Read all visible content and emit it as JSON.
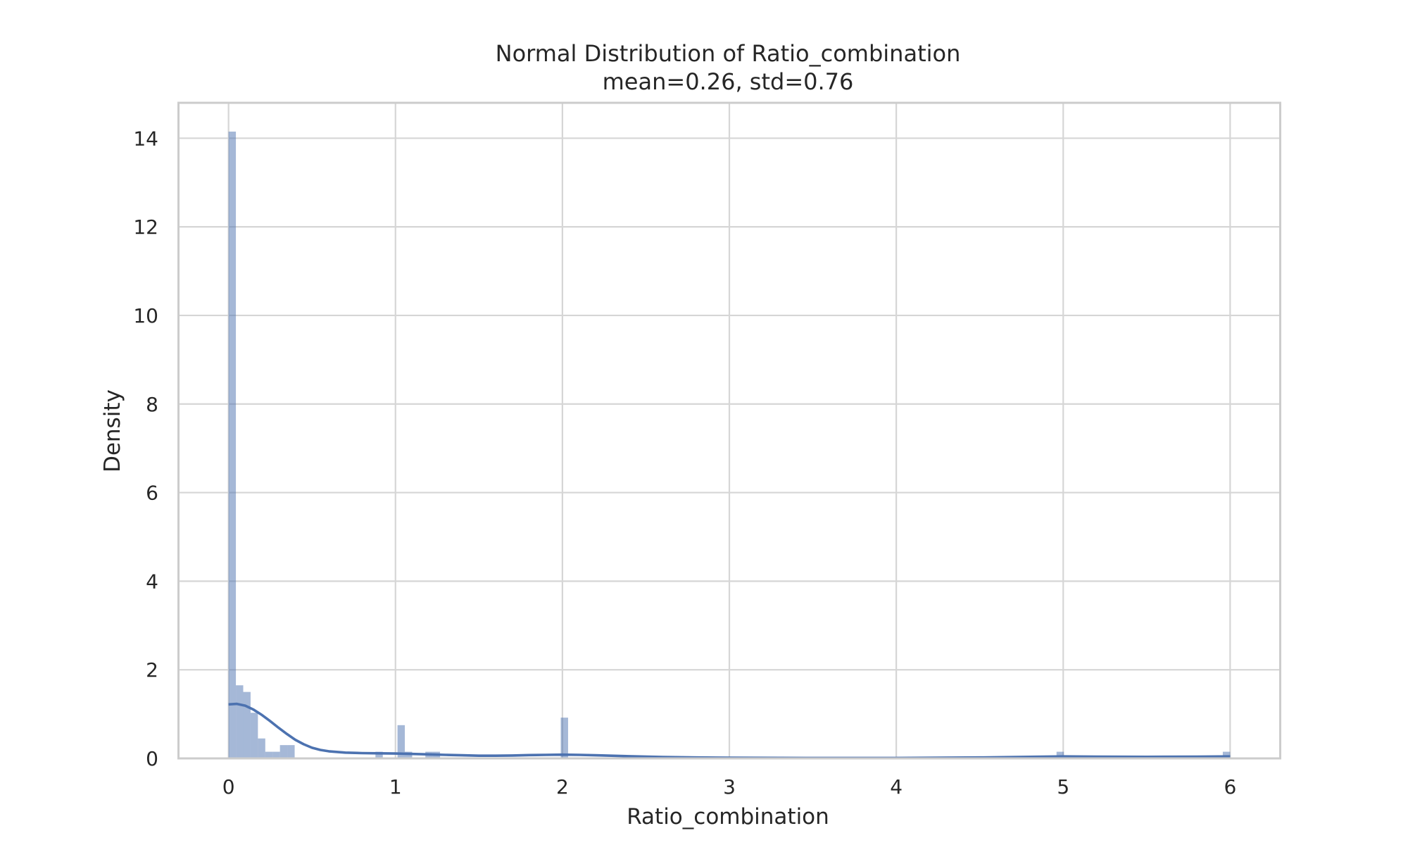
{
  "chart_data": {
    "type": "histogram",
    "title": "Normal Distribution of Ratio_combination",
    "subtitle": "mean=0.26, std=0.76",
    "xlabel": "Ratio_combination",
    "ylabel": "Density",
    "xlim": [
      -0.3,
      6.3
    ],
    "ylim": [
      0,
      14.8
    ],
    "x_ticks": [
      0,
      1,
      2,
      3,
      4,
      5,
      6
    ],
    "y_ticks": [
      0,
      2,
      4,
      6,
      8,
      10,
      12,
      14
    ],
    "grid": true,
    "bin_width": 0.044,
    "bins": [
      {
        "x": 0.0,
        "density": 14.15
      },
      {
        "x": 0.044,
        "density": 1.65
      },
      {
        "x": 0.088,
        "density": 1.5
      },
      {
        "x": 0.132,
        "density": 1.03
      },
      {
        "x": 0.176,
        "density": 0.45
      },
      {
        "x": 0.22,
        "density": 0.15
      },
      {
        "x": 0.264,
        "density": 0.15
      },
      {
        "x": 0.308,
        "density": 0.3
      },
      {
        "x": 0.352,
        "density": 0.3
      },
      {
        "x": 0.88,
        "density": 0.15
      },
      {
        "x": 1.012,
        "density": 0.75
      },
      {
        "x": 1.056,
        "density": 0.15
      },
      {
        "x": 1.179,
        "density": 0.15
      },
      {
        "x": 1.223,
        "density": 0.15
      },
      {
        "x": 1.99,
        "density": 0.92
      },
      {
        "x": 4.96,
        "density": 0.15
      },
      {
        "x": 5.956,
        "density": 0.15
      }
    ],
    "kde": {
      "x": [
        0.0,
        0.05,
        0.1,
        0.15,
        0.2,
        0.25,
        0.3,
        0.35,
        0.4,
        0.45,
        0.5,
        0.55,
        0.6,
        0.7,
        0.8,
        0.9,
        1.0,
        1.1,
        1.2,
        1.3,
        1.4,
        1.5,
        1.6,
        1.7,
        1.8,
        1.9,
        2.0,
        2.1,
        2.2,
        2.4,
        2.6,
        2.8,
        3.0,
        3.5,
        4.0,
        4.5,
        4.8,
        5.0,
        5.2,
        5.5,
        5.8,
        6.0
      ],
      "y": [
        1.22,
        1.23,
        1.19,
        1.1,
        0.98,
        0.84,
        0.69,
        0.55,
        0.42,
        0.32,
        0.24,
        0.19,
        0.16,
        0.13,
        0.12,
        0.115,
        0.11,
        0.1,
        0.09,
        0.08,
        0.07,
        0.06,
        0.06,
        0.065,
        0.075,
        0.08,
        0.085,
        0.08,
        0.07,
        0.05,
        0.03,
        0.02,
        0.015,
        0.01,
        0.01,
        0.02,
        0.035,
        0.045,
        0.04,
        0.035,
        0.04,
        0.045
      ]
    }
  }
}
